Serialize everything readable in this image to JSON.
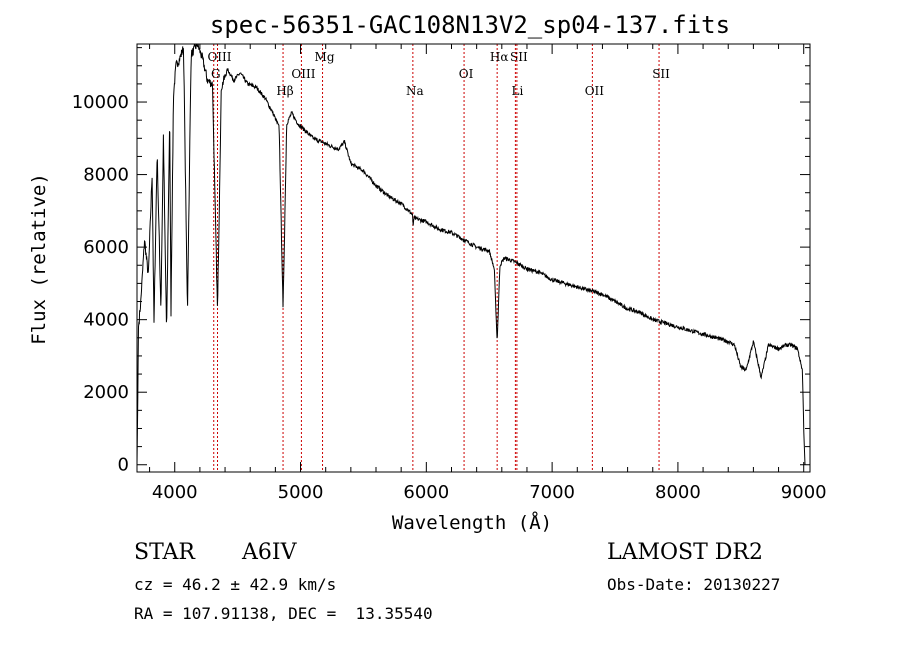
{
  "chart_data": {
    "type": "line",
    "title": "spec-56351-GAC108N13V2_sp04-137.fits",
    "xlabel": "Wavelength (Å)",
    "ylabel": "Flux (relative)",
    "xlim": [
      3700,
      9050
    ],
    "ylim": [
      -200,
      11600
    ],
    "xticks": [
      4000,
      5000,
      6000,
      7000,
      8000,
      9000
    ],
    "yticks": [
      0,
      2000,
      4000,
      6000,
      8000,
      10000
    ],
    "grid": false,
    "line_color": "#000000",
    "marker_color": "#cc0000",
    "anchor_points": [
      [
        3700,
        0
      ],
      [
        3705,
        1500
      ],
      [
        3712,
        3800
      ],
      [
        3730,
        4500
      ],
      [
        3760,
        6200
      ],
      [
        3790,
        5200
      ],
      [
        3820,
        8000
      ],
      [
        3835,
        3900
      ],
      [
        3860,
        8600
      ],
      [
        3890,
        4300
      ],
      [
        3910,
        9000
      ],
      [
        3935,
        3600
      ],
      [
        3960,
        9600
      ],
      [
        3970,
        4200
      ],
      [
        3990,
        10200
      ],
      [
        4010,
        11000
      ],
      [
        4040,
        11200
      ],
      [
        4070,
        11500
      ],
      [
        4101,
        4200
      ],
      [
        4130,
        11300
      ],
      [
        4180,
        11600
      ],
      [
        4220,
        11200
      ],
      [
        4260,
        10600
      ],
      [
        4300,
        10500
      ],
      [
        4340,
        4200
      ],
      [
        4370,
        10400
      ],
      [
        4420,
        10900
      ],
      [
        4470,
        10600
      ],
      [
        4520,
        10800
      ],
      [
        4580,
        10500
      ],
      [
        4650,
        10400
      ],
      [
        4720,
        10100
      ],
      [
        4780,
        9700
      ],
      [
        4830,
        9300
      ],
      [
        4861,
        4300
      ],
      [
        4890,
        9400
      ],
      [
        4930,
        9700
      ],
      [
        4980,
        9400
      ],
      [
        5040,
        9200
      ],
      [
        5100,
        9000
      ],
      [
        5170,
        8900
      ],
      [
        5230,
        8800
      ],
      [
        5300,
        8700
      ],
      [
        5350,
        8900
      ],
      [
        5400,
        8300
      ],
      [
        5500,
        8100
      ],
      [
        5600,
        7700
      ],
      [
        5700,
        7400
      ],
      [
        5800,
        7200
      ],
      [
        5890,
        6900
      ],
      [
        5895,
        6500
      ],
      [
        5900,
        6800
      ],
      [
        6000,
        6700
      ],
      [
        6100,
        6500
      ],
      [
        6200,
        6400
      ],
      [
        6300,
        6200
      ],
      [
        6400,
        6000
      ],
      [
        6500,
        5900
      ],
      [
        6540,
        5400
      ],
      [
        6563,
        3400
      ],
      [
        6585,
        5500
      ],
      [
        6620,
        5700
      ],
      [
        6700,
        5600
      ],
      [
        6800,
        5400
      ],
      [
        6900,
        5300
      ],
      [
        7000,
        5100
      ],
      [
        7100,
        5000
      ],
      [
        7200,
        4900
      ],
      [
        7300,
        4800
      ],
      [
        7400,
        4700
      ],
      [
        7500,
        4500
      ],
      [
        7600,
        4300
      ],
      [
        7700,
        4200
      ],
      [
        7800,
        4000
      ],
      [
        7900,
        3900
      ],
      [
        8000,
        3800
      ],
      [
        8100,
        3700
      ],
      [
        8200,
        3600
      ],
      [
        8300,
        3500
      ],
      [
        8400,
        3400
      ],
      [
        8450,
        3300
      ],
      [
        8498,
        2700
      ],
      [
        8542,
        2600
      ],
      [
        8600,
        3400
      ],
      [
        8662,
        2400
      ],
      [
        8720,
        3300
      ],
      [
        8800,
        3200
      ],
      [
        8860,
        3300
      ],
      [
        8900,
        3300
      ],
      [
        8950,
        3200
      ],
      [
        8990,
        2600
      ],
      [
        9000,
        1000
      ],
      [
        9010,
        0
      ]
    ],
    "lines": [
      {
        "label": "OIII",
        "x": 4340,
        "row": 1
      },
      {
        "label": "G",
        "x": 4310,
        "row": 2
      },
      {
        "label": "Hβ",
        "x": 4861,
        "row": 4
      },
      {
        "label": "OIII",
        "x": 5007,
        "row": 3
      },
      {
        "label": "Mg",
        "x": 5175,
        "row": 1
      },
      {
        "label": "Na",
        "x": 5893,
        "row": 4
      },
      {
        "label": "OI",
        "x": 6300,
        "row": 3
      },
      {
        "label": "Hα",
        "x": 6563,
        "row": 1
      },
      {
        "label": "SII",
        "x": 6720,
        "row": 1
      },
      {
        "label": "Li",
        "x": 6708,
        "row": 4
      },
      {
        "label": "OII",
        "x": 7320,
        "row": 4
      },
      {
        "label": "SII",
        "x": 7850,
        "row": 3
      }
    ]
  },
  "info": {
    "class_label": "STAR",
    "subclass": "A6IV",
    "survey": "LAMOST DR2",
    "cz": "cz = 46.2 ± 42.9 km/s",
    "obs_date": "Obs-Date: 20130227",
    "coords": "RA = 107.91138, DEC =  13.35540"
  }
}
